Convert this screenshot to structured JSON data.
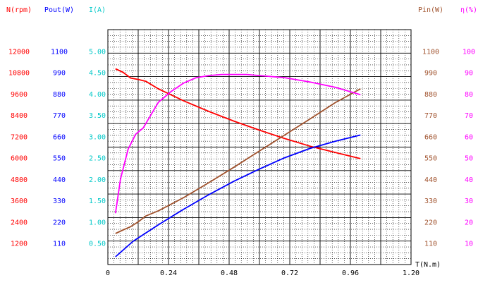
{
  "chart_data": {
    "type": "line",
    "grid": true,
    "xlabel": "T(N.m)",
    "x_ticks": [
      "0",
      "0.24",
      "0.48",
      "0.72",
      "0.96",
      "1.20"
    ],
    "x_tick_values": [
      0,
      0.24,
      0.48,
      0.72,
      0.96,
      1.2
    ],
    "xlim": [
      0,
      1.2
    ],
    "axes": [
      {
        "id": "n",
        "label": "N(rpm)",
        "color": "#ff0000",
        "side": "left",
        "ylim": [
          0,
          13200
        ],
        "ticks": [
          "1200",
          "2400",
          "3600",
          "4800",
          "6000",
          "7200",
          "8400",
          "9600",
          "10800",
          "12000"
        ],
        "tick_values": [
          1200,
          2400,
          3600,
          4800,
          6000,
          7200,
          8400,
          9600,
          10800,
          12000
        ]
      },
      {
        "id": "pout",
        "label": "Pout(W)",
        "color": "#0000ff",
        "side": "left",
        "ylim": [
          0,
          1210
        ],
        "ticks": [
          "110",
          "220",
          "330",
          "440",
          "550",
          "660",
          "770",
          "880",
          "990",
          "1100"
        ],
        "tick_values": [
          110,
          220,
          330,
          440,
          550,
          660,
          770,
          880,
          990,
          1100
        ]
      },
      {
        "id": "i",
        "label": "I(A)",
        "color": "#00c8c8",
        "side": "left",
        "ylim": [
          0,
          5.5
        ],
        "ticks": [
          "0.50",
          "1.00",
          "1.50",
          "2.00",
          "2.50",
          "3.00",
          "3.50",
          "4.00",
          "4.50",
          "5.00"
        ],
        "tick_values": [
          0.5,
          1.0,
          1.5,
          2.0,
          2.5,
          3.0,
          3.5,
          4.0,
          4.5,
          5.0
        ]
      },
      {
        "id": "pin",
        "label": "Pin(W)",
        "color": "#a0522d",
        "side": "right",
        "ylim": [
          0,
          1210
        ],
        "ticks": [
          "110",
          "220",
          "330",
          "440",
          "550",
          "660",
          "770",
          "880",
          "990",
          "1100"
        ],
        "tick_values": [
          110,
          220,
          330,
          440,
          550,
          660,
          770,
          880,
          990,
          1100
        ]
      },
      {
        "id": "eff",
        "label": "η(%)",
        "color": "#ff00ff",
        "side": "right",
        "ylim": [
          0,
          110
        ],
        "ticks": [
          "10",
          "20",
          "30",
          "40",
          "50",
          "60",
          "70",
          "80",
          "90",
          "100"
        ],
        "tick_values": [
          10,
          20,
          30,
          40,
          50,
          60,
          70,
          80,
          90,
          100
        ]
      }
    ],
    "series": [
      {
        "axis": "n",
        "color": "#ff0000",
        "x": [
          0.03,
          0.06,
          0.09,
          0.12,
          0.15,
          0.2,
          0.3,
          0.4,
          0.5,
          0.6,
          0.7,
          0.8,
          0.9,
          1.0
        ],
        "y": [
          11000,
          10800,
          10480,
          10400,
          10300,
          9870,
          9200,
          8600,
          8050,
          7550,
          7080,
          6650,
          6300,
          5950
        ]
      },
      {
        "axis": "pout",
        "color": "#0000ff",
        "x": [
          0.03,
          0.1,
          0.2,
          0.3,
          0.4,
          0.5,
          0.6,
          0.7,
          0.8,
          0.9,
          1.0
        ],
        "y": [
          40,
          120,
          205,
          285,
          360,
          430,
          492,
          550,
          598,
          635,
          667
        ]
      },
      {
        "axis": "pin",
        "color": "#a0522d",
        "x": [
          0.03,
          0.06,
          0.09,
          0.12,
          0.15,
          0.2,
          0.3,
          0.4,
          0.5,
          0.6,
          0.7,
          0.8,
          0.9,
          1.0
        ],
        "y": [
          160,
          178,
          195,
          220,
          250,
          277,
          345,
          422,
          502,
          585,
          667,
          750,
          834,
          905
        ]
      },
      {
        "axis": "eff",
        "color": "#ff00ff",
        "x": [
          0.03,
          0.05,
          0.08,
          0.11,
          0.14,
          0.17,
          0.2,
          0.25,
          0.3,
          0.35,
          0.4,
          0.45,
          0.5,
          0.55,
          0.6,
          0.7,
          0.8,
          0.9,
          1.0
        ],
        "y": [
          24,
          40,
          54,
          61,
          64,
          70,
          76,
          81,
          85,
          87.5,
          88.5,
          89,
          89,
          89,
          88.5,
          87.5,
          85.5,
          83,
          79.5
        ]
      }
    ]
  }
}
